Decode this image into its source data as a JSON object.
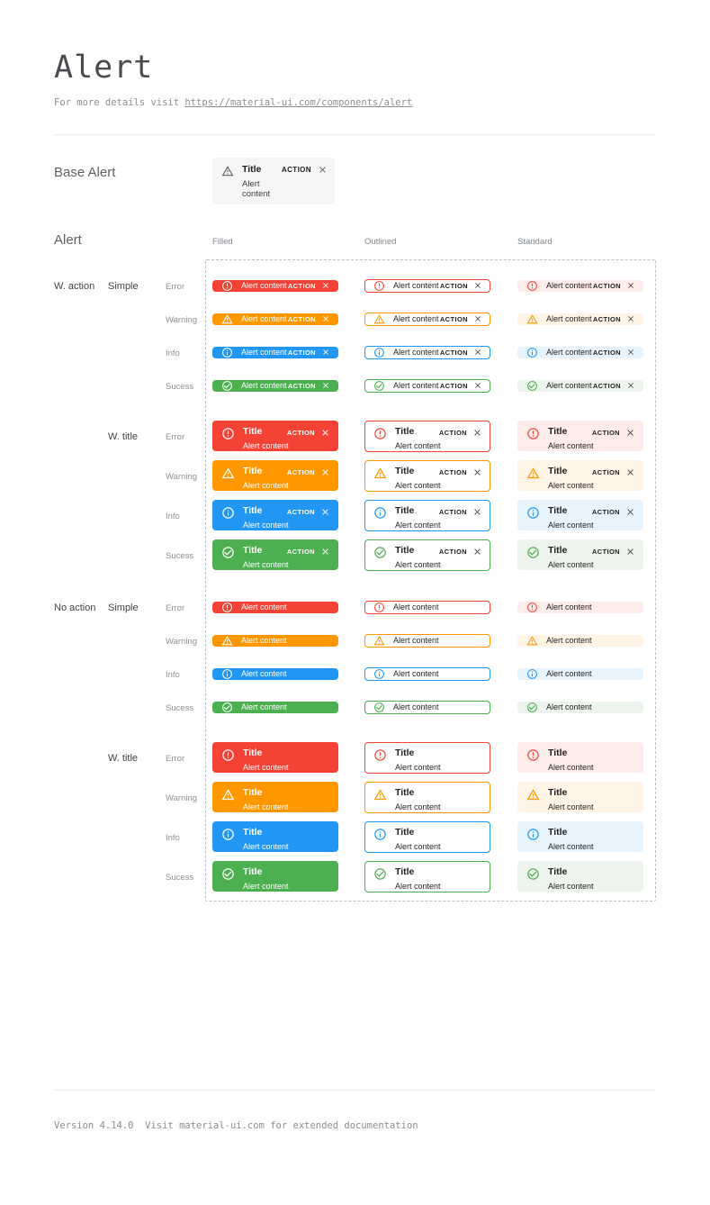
{
  "page": {
    "title": "Alert",
    "subtitle_prefix": "For more details visit ",
    "subtitle_link": "https://material-ui.com/components/alert",
    "footer": "Version 4.14.0  Visit material-ui.com for extended documentation"
  },
  "base_alert": {
    "section_label": "Base Alert",
    "icon": "warning-icon",
    "title": "Title",
    "content": "Alert content",
    "action_label": "ACTION",
    "bg": "#f5f5f5"
  },
  "alert_section": {
    "section_label": "Alert",
    "columns": [
      "Filled",
      "Outlined",
      "Standard"
    ],
    "strings": {
      "title": "Title",
      "content": "Alert content",
      "action": "ACTION"
    },
    "frame_color": "#b6bfcc",
    "severities": [
      {
        "key": "error",
        "label": "Error",
        "icon": "error-icon",
        "main": "#f44336",
        "standard_bg": "#fdecea"
      },
      {
        "key": "warning",
        "label": "Warning",
        "icon": "warning-icon",
        "main": "#ff9800",
        "standard_bg": "#fff4e5"
      },
      {
        "key": "info",
        "label": "Info",
        "icon": "info-icon",
        "main": "#2196f3",
        "standard_bg": "#e8f4fd"
      },
      {
        "key": "success",
        "label": "Sucess",
        "icon": "success-icon",
        "main": "#4caf50",
        "standard_bg": "#edf4ed"
      }
    ],
    "groups": [
      {
        "label": "W. action",
        "subgroups": [
          {
            "label": "Simple",
            "with_title": false,
            "with_action": true
          },
          {
            "label": "W. title",
            "with_title": true,
            "with_action": true
          }
        ]
      },
      {
        "label": "No action",
        "subgroups": [
          {
            "label": "Simple",
            "with_title": false,
            "with_action": false
          },
          {
            "label": "W. title",
            "with_title": true,
            "with_action": false
          }
        ]
      }
    ]
  }
}
